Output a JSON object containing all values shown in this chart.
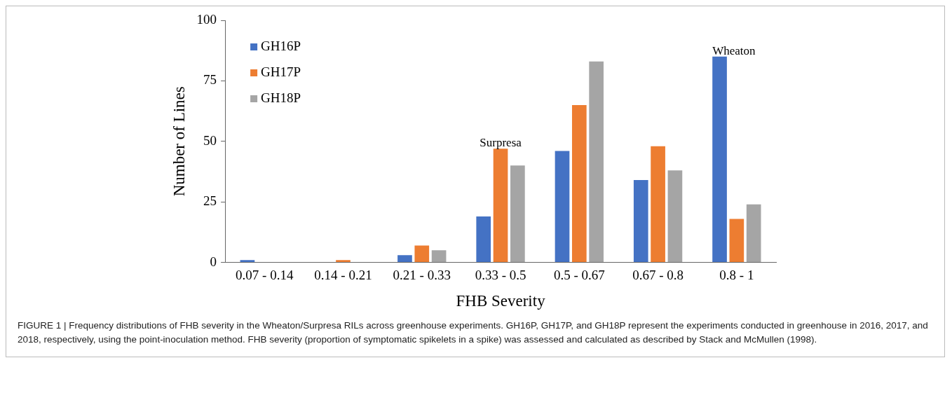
{
  "chart_data": {
    "type": "bar",
    "xlabel": "FHB Severity",
    "ylabel": "Number of Lines",
    "categories": [
      "0.07 - 0.14",
      "0.14 - 0.21",
      "0.21 - 0.33",
      "0.33 - 0.5",
      "0.5 - 0.67",
      "0.67 - 0.8",
      "0.8 - 1"
    ],
    "series": [
      {
        "name": "GH16P",
        "color": "#4472c4",
        "values": [
          1,
          0,
          3,
          19,
          46,
          34,
          85
        ]
      },
      {
        "name": "GH17P",
        "color": "#ed7d31",
        "values": [
          0,
          1,
          7,
          47,
          65,
          48,
          18
        ]
      },
      {
        "name": "GH18P",
        "color": "#a5a5a5",
        "values": [
          0,
          0,
          5,
          40,
          83,
          38,
          24
        ]
      }
    ],
    "ylim": [
      0,
      100
    ],
    "yticks": [
      0,
      25,
      50,
      75,
      100
    ],
    "grid": false,
    "legend": "top left",
    "annotations": [
      {
        "text": "Surpresa",
        "x": "0.33 - 0.5",
        "y": 47
      },
      "Wheaton",
      "FIGURE 1 | Frequency distributions of FHB severity in the Wheaton/Surpresa RILs across greenhouse experiments. GH16P, GH17P, and GH18P represent the experiments conducted in greenhouse in 2016, 2017, and 2018, respectively, using the point-inoculation method. FHB severity (proportion of symptomatic spikelets in a spike) was assessed and calculated as described by Stack and McMullen (1998)."
    ]
  }
}
